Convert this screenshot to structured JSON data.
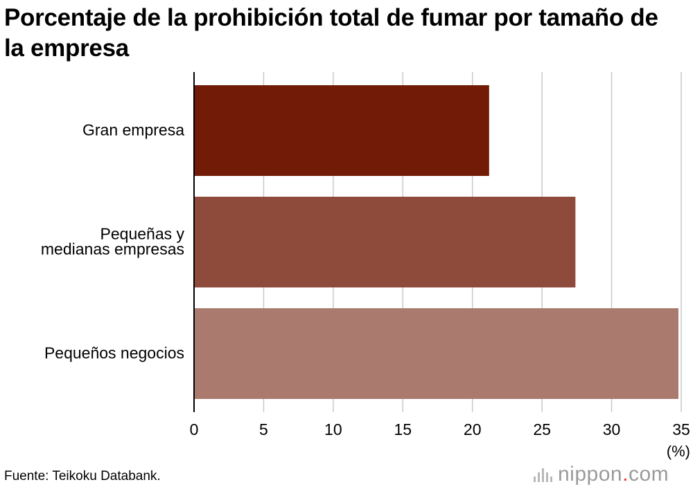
{
  "chart_data": {
    "type": "bar",
    "orientation": "horizontal",
    "title": "Porcentaje de la prohibición total de fumar por tamaño de la empresa",
    "categories": [
      "Gran empresa",
      "Pequeñas y\nmedianas empresas",
      "Pequeños negocios"
    ],
    "values": [
      21.2,
      27.4,
      34.8
    ],
    "colors": [
      "#721c08",
      "#8e4a3b",
      "#a97a6d"
    ],
    "xlim": [
      0,
      35
    ],
    "xticks": [
      0,
      5,
      10,
      15,
      20,
      25,
      30,
      35
    ],
    "unit_label": "(%)",
    "grid": true
  },
  "source": "Fuente: Teikoku Databank.",
  "logo": {
    "main": "nippon",
    "dot": ".",
    "tld": "com"
  }
}
